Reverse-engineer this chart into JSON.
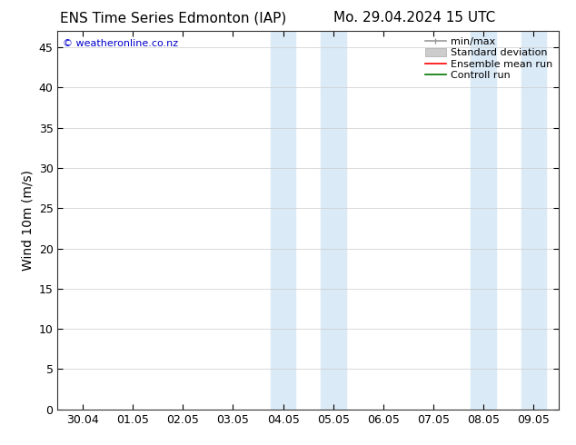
{
  "title_left": "ENS Time Series Edmonton (IAP)",
  "title_right": "Mo. 29.04.2024 15 UTC",
  "ylabel": "Wind 10m (m/s)",
  "watermark": "© weatheronline.co.nz",
  "xtick_labels": [
    "30.04",
    "01.05",
    "02.05",
    "03.05",
    "04.05",
    "05.05",
    "06.05",
    "07.05",
    "08.05",
    "09.05"
  ],
  "ylim": [
    0,
    47
  ],
  "yticks": [
    0,
    5,
    10,
    15,
    20,
    25,
    30,
    35,
    40,
    45
  ],
  "background_color": "#ffffff",
  "shaded_bands": [
    {
      "xstart": 3.75,
      "xend": 4.25,
      "color": "#daeaf7"
    },
    {
      "xstart": 4.75,
      "xend": 5.25,
      "color": "#daeaf7"
    },
    {
      "xstart": 7.75,
      "xend": 8.25,
      "color": "#daeaf7"
    },
    {
      "xstart": 8.75,
      "xend": 9.25,
      "color": "#daeaf7"
    }
  ],
  "legend_items": [
    {
      "label": "min/max",
      "color": "#aaaaaa",
      "style": "minmax"
    },
    {
      "label": "Standard deviation",
      "color": "#cccccc",
      "style": "stddev"
    },
    {
      "label": "Ensemble mean run",
      "color": "#ff0000",
      "style": "line"
    },
    {
      "label": "Controll run",
      "color": "#008800",
      "style": "line"
    }
  ],
  "title_fontsize": 11,
  "axis_fontsize": 10,
  "tick_fontsize": 9,
  "watermark_color": "#0000cc",
  "watermark_fontsize": 8,
  "legend_fontsize": 8
}
